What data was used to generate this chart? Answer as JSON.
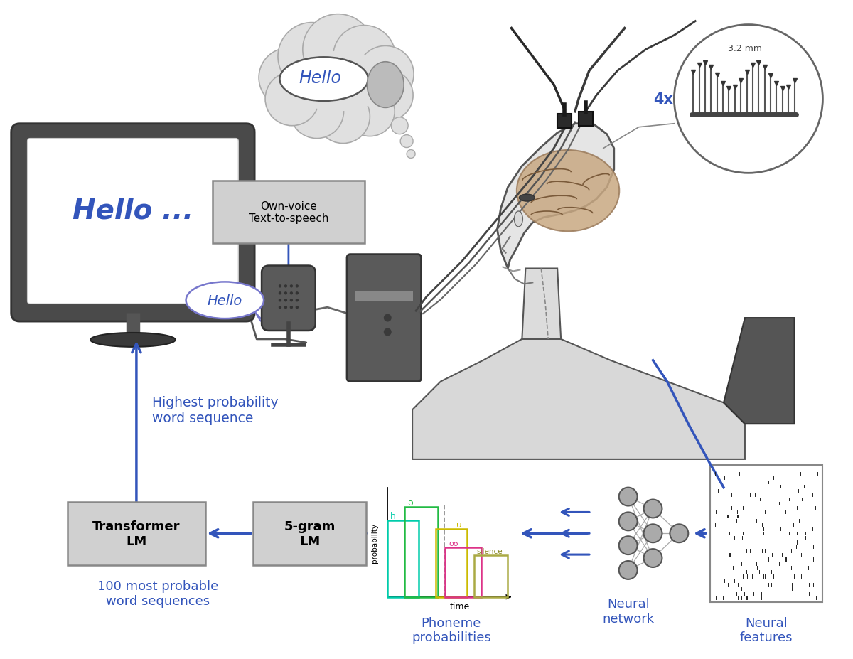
{
  "bg_color": "#ffffff",
  "blue": "#3355bb",
  "arrow_color": "#3355bb",
  "box_bg": "#d0d0d0",
  "box_border": "#888888",
  "labels": {
    "hello_screen": "Hello ...",
    "own_voice": "Own-voice\nText-to-speech",
    "hello_bubble": "Hello",
    "hello_thought": "Hello",
    "highest_prob": "Highest probability\nword sequence",
    "transformer_lm": "Transformer\nLM",
    "fivegram_lm": "5-gram\nLM",
    "phoneme_prob": "Phoneme\nprobabilities",
    "neural_network": "Neural\nnetwork",
    "neural_features": "Neural\nfeatures",
    "100_most": "100 most probable\nword sequences",
    "four_x": "4x",
    "three_mm": "3.2 mm",
    "probability": "probability",
    "time": "time",
    "h_label": "h",
    "ae_label": "ə",
    "u_label": "u",
    "ou_label": "oʊ",
    "silence_label": "silence"
  }
}
